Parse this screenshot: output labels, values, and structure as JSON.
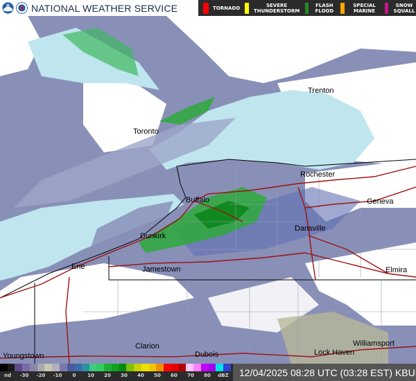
{
  "header": {
    "title": "NATIONAL WEATHER SERVICE",
    "logos": [
      "noaa-logo",
      "nws-logo"
    ],
    "warnings": [
      {
        "label": "TORNADO",
        "color": "#ff0000"
      },
      {
        "label": "SEVERE THUNDERSTORM",
        "color": "#ffff00"
      },
      {
        "label": "FLASH FLOOD",
        "color": "#228b22"
      },
      {
        "label": "SPECIAL MARINE",
        "color": "#ffa500"
      },
      {
        "label": "SNOW SQUALL",
        "color": "#c71585"
      }
    ]
  },
  "map": {
    "radar_site": "KBUF",
    "cities": [
      "Trenton",
      "Toronto",
      "Rochester",
      "Buffalo",
      "Geneva",
      "Dunkirk",
      "Dansville",
      "Erie",
      "Jamestown",
      "Elmira",
      "Clarion",
      "Dubois",
      "Williamsport",
      "Lock Haven",
      "Youngstown"
    ],
    "colors": {
      "water": "#bfe6ee",
      "land_clear": "#ffffff",
      "light_echo": "#7b85b5",
      "moderate_echo": "#22a83a",
      "roads": "#a01010",
      "borders": "#000000"
    }
  },
  "legend": {
    "ticks": [
      "nd",
      "-30",
      "-20",
      "-10",
      "0",
      "10",
      "20",
      "30",
      "40",
      "50",
      "60",
      "70",
      "80",
      "dBZ"
    ],
    "colors": [
      "#000000",
      "#1a1a1a",
      "#5c4a8a",
      "#7a6aa8",
      "#8a86a8",
      "#a8a8b0",
      "#c8c8b0",
      "#b0b0c0",
      "#7a7aa8",
      "#4a5aa0",
      "#3a6aa8",
      "#2a90a0",
      "#40c880",
      "#30d060",
      "#20b030",
      "#10a020",
      "#008810",
      "#80c000",
      "#c8d000",
      "#f0e000",
      "#f0c800",
      "#f09000",
      "#ff0000",
      "#e00000",
      "#b00000",
      "#ffc8ff",
      "#ff80ff",
      "#c000ff",
      "#a000f0",
      "#00e0e8",
      "#3040d0"
    ],
    "timestamp": "12/04/2025 08:28 UTC (03:28 EST) KBUF"
  }
}
